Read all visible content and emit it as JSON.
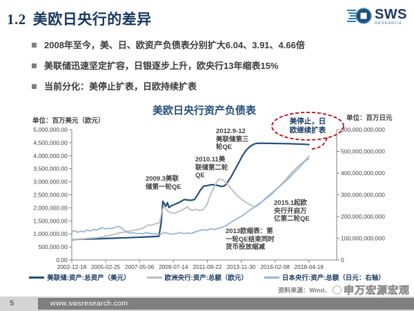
{
  "header": {
    "section_no": "1.2",
    "title": "美欧日央行的差异"
  },
  "logo": {
    "name": "SWS",
    "sub": "RESEARCH"
  },
  "bullets": [
    "2008年至今，美、日、欧资产负债表分别扩大6.04、3.91、4.66倍",
    "美联储迅速坚定扩容，日银逐步上升，欧央行13年缩表15%",
    "当前分化：美停止扩表，日欧持续扩表"
  ],
  "chart_data": {
    "type": "line",
    "title": "美欧日央行资产负债表",
    "left_axis": {
      "unit": "单位：百万美元（欧元）",
      "min": 0,
      "max": 5000000,
      "tick_labels": [
        "5,000,000.00",
        "4,500,000.00",
        "4,000,000.00",
        "3,500,000.00",
        "3,000,000.00",
        "2,500,000.00",
        "2,000,000.00",
        "1,500,000.00",
        "1,000,000.00",
        "500,000.00",
        "0.00"
      ]
    },
    "right_axis": {
      "unit": "单位：百万日元",
      "min": 0,
      "max": 600000000000,
      "tick_labels": [
        "600,000,000,000",
        "500,000,000,000",
        "400,000,000,000",
        "300,000,000,000",
        "200,000,000,000",
        "100,000,000,000",
        "0"
      ]
    },
    "x_axis": {
      "tick_labels": [
        "2002-12-18",
        "2005-02-25",
        "2007-05-06",
        "2009-07-14",
        "2011-09-22",
        "2013-11-30",
        "2016-02-08",
        "2018-04-18"
      ],
      "start_year": 2002.96,
      "end_year": 2018.3
    },
    "series": [
      {
        "name": "美联储:资产:总资产（美元）",
        "color": "#1F4E79",
        "axis": "left",
        "width": 2.2,
        "points": [
          [
            2002.96,
            780000
          ],
          [
            2003.5,
            795000
          ],
          [
            2004,
            805000
          ],
          [
            2004.5,
            810000
          ],
          [
            2005,
            820000
          ],
          [
            2005.5,
            832000
          ],
          [
            2006,
            845000
          ],
          [
            2006.5,
            852000
          ],
          [
            2007,
            865000
          ],
          [
            2007.5,
            875000
          ],
          [
            2008,
            890000
          ],
          [
            2008.6,
            910000
          ],
          [
            2008.75,
            1450000
          ],
          [
            2008.85,
            2250000
          ],
          [
            2008.95,
            2150000
          ],
          [
            2009.05,
            2060000
          ],
          [
            2009.15,
            2200000
          ],
          [
            2009.25,
            2010000
          ],
          [
            2009.4,
            2080000
          ],
          [
            2009.6,
            2130000
          ],
          [
            2009.8,
            2180000
          ],
          [
            2010,
            2240000
          ],
          [
            2010.25,
            2320000
          ],
          [
            2010.5,
            2300000
          ],
          [
            2010.7,
            2290000
          ],
          [
            2010.9,
            2320000
          ],
          [
            2011.1,
            2500000
          ],
          [
            2011.3,
            2700000
          ],
          [
            2011.5,
            2830000
          ],
          [
            2011.75,
            2860000
          ],
          [
            2012,
            2890000
          ],
          [
            2012.25,
            2880000
          ],
          [
            2012.45,
            2850000
          ],
          [
            2012.65,
            2820000
          ],
          [
            2012.85,
            2850000
          ],
          [
            2013,
            2950000
          ],
          [
            2013.25,
            3180000
          ],
          [
            2013.5,
            3450000
          ],
          [
            2013.75,
            3720000
          ],
          [
            2014,
            4000000
          ],
          [
            2014.25,
            4220000
          ],
          [
            2014.5,
            4360000
          ],
          [
            2014.75,
            4450000
          ],
          [
            2015,
            4480000
          ],
          [
            2015.5,
            4475000
          ],
          [
            2016,
            4470000
          ],
          [
            2016.5,
            4465000
          ],
          [
            2017,
            4460000
          ],
          [
            2017.5,
            4450000
          ],
          [
            2018,
            4440000
          ],
          [
            2018.3,
            4425000
          ]
        ]
      },
      {
        "name": "欧洲央行:资产:总额（欧元）",
        "color": "#BFBFBF",
        "axis": "left",
        "width": 2,
        "points": [
          [
            2002.96,
            790000
          ],
          [
            2003.3,
            795000
          ],
          [
            2003.6,
            805000
          ],
          [
            2004,
            830000
          ],
          [
            2004.4,
            845000
          ],
          [
            2004.8,
            870000
          ],
          [
            2005.2,
            915000
          ],
          [
            2005.6,
            965000
          ],
          [
            2006,
            1040000
          ],
          [
            2006.4,
            1075000
          ],
          [
            2006.8,
            1120000
          ],
          [
            2007.2,
            1165000
          ],
          [
            2007.6,
            1230000
          ],
          [
            2007.9,
            1345000
          ],
          [
            2008.1,
            1330000
          ],
          [
            2008.4,
            1395000
          ],
          [
            2008.65,
            1430000
          ],
          [
            2008.8,
            1890000
          ],
          [
            2008.92,
            2060000
          ],
          [
            2009.05,
            1960000
          ],
          [
            2009.2,
            1860000
          ],
          [
            2009.4,
            1810000
          ],
          [
            2009.6,
            1790000
          ],
          [
            2009.8,
            1840000
          ],
          [
            2010,
            1890000
          ],
          [
            2010.2,
            1945000
          ],
          [
            2010.45,
            2040000
          ],
          [
            2010.6,
            1930000
          ],
          [
            2010.8,
            1905000
          ],
          [
            2011,
            1945000
          ],
          [
            2011.2,
            1895000
          ],
          [
            2011.45,
            1925000
          ],
          [
            2011.7,
            2120000
          ],
          [
            2011.9,
            2450000
          ],
          [
            2012.1,
            2710000
          ],
          [
            2012.3,
            2960000
          ],
          [
            2012.5,
            3100000
          ],
          [
            2012.7,
            3075000
          ],
          [
            2012.9,
            3000000
          ],
          [
            2013.1,
            2855000
          ],
          [
            2013.35,
            2680000
          ],
          [
            2013.6,
            2500000
          ],
          [
            2013.85,
            2370000
          ],
          [
            2014.1,
            2260000
          ],
          [
            2014.4,
            2150000
          ],
          [
            2014.65,
            2070000
          ],
          [
            2014.85,
            2040000
          ],
          [
            2015.05,
            2110000
          ],
          [
            2015.3,
            2260000
          ],
          [
            2015.6,
            2420000
          ],
          [
            2015.9,
            2580000
          ],
          [
            2016.2,
            2720000
          ],
          [
            2016.5,
            2890000
          ],
          [
            2016.8,
            3080000
          ],
          [
            2017.1,
            3290000
          ],
          [
            2017.4,
            3480000
          ],
          [
            2017.7,
            3640000
          ],
          [
            2018,
            3790000
          ],
          [
            2018.3,
            3870000
          ]
        ]
      },
      {
        "name": "日本央行:资产:总额（日元：右轴）",
        "color": "#95B3D7",
        "axis": "right",
        "width": 1.8,
        "points": [
          [
            2002.96,
            128000000000
          ],
          [
            2003.15,
            136000000000
          ],
          [
            2003.35,
            127000000000
          ],
          [
            2003.55,
            133000000000
          ],
          [
            2003.75,
            129000000000
          ],
          [
            2003.95,
            139000000000
          ],
          [
            2004.15,
            133000000000
          ],
          [
            2004.35,
            141000000000
          ],
          [
            2004.55,
            137000000000
          ],
          [
            2004.75,
            144000000000
          ],
          [
            2004.95,
            148000000000
          ],
          [
            2005.15,
            143000000000
          ],
          [
            2005.35,
            147000000000
          ],
          [
            2005.55,
            144000000000
          ],
          [
            2005.75,
            150000000000
          ],
          [
            2005.95,
            155000000000
          ],
          [
            2006.15,
            149000000000
          ],
          [
            2006.35,
            137000000000
          ],
          [
            2006.55,
            127000000000
          ],
          [
            2006.75,
            123000000000
          ],
          [
            2006.95,
            126000000000
          ],
          [
            2007.15,
            121000000000
          ],
          [
            2007.35,
            123000000000
          ],
          [
            2007.55,
            120000000000
          ],
          [
            2007.75,
            126000000000
          ],
          [
            2007.95,
            124000000000
          ],
          [
            2008.2,
            119000000000
          ],
          [
            2008.45,
            121000000000
          ],
          [
            2008.7,
            118000000000
          ],
          [
            2008.95,
            126000000000
          ],
          [
            2009.2,
            122000000000
          ],
          [
            2009.45,
            119000000000
          ],
          [
            2009.7,
            121000000000
          ],
          [
            2009.95,
            126000000000
          ],
          [
            2010.2,
            121000000000
          ],
          [
            2010.45,
            124000000000
          ],
          [
            2010.7,
            122000000000
          ],
          [
            2010.95,
            129000000000
          ],
          [
            2011.2,
            135000000000
          ],
          [
            2011.45,
            139000000000
          ],
          [
            2011.7,
            137000000000
          ],
          [
            2011.95,
            144000000000
          ],
          [
            2012.2,
            140000000000
          ],
          [
            2012.45,
            146000000000
          ],
          [
            2012.7,
            151000000000
          ],
          [
            2012.95,
            159000000000
          ],
          [
            2013.2,
            170000000000
          ],
          [
            2013.45,
            182000000000
          ],
          [
            2013.7,
            192000000000
          ],
          [
            2013.95,
            202000000000
          ],
          [
            2014.2,
            215000000000
          ],
          [
            2014.45,
            228000000000
          ],
          [
            2014.7,
            240000000000
          ],
          [
            2014.95,
            252000000000
          ],
          [
            2015.2,
            265000000000
          ],
          [
            2015.45,
            278000000000
          ],
          [
            2015.7,
            292000000000
          ],
          [
            2015.95,
            307000000000
          ],
          [
            2016.2,
            325000000000
          ],
          [
            2016.45,
            342000000000
          ],
          [
            2016.7,
            358000000000
          ],
          [
            2016.95,
            373000000000
          ],
          [
            2017.2,
            392000000000
          ],
          [
            2017.45,
            410000000000
          ],
          [
            2017.7,
            428000000000
          ],
          [
            2017.95,
            448000000000
          ],
          [
            2018.3,
            477000000000
          ]
        ]
      }
    ],
    "annotations": [
      {
        "text": "2009.3美联\n储第一轮QE"
      },
      {
        "text": "2010.11美\n联储第二轮\nQE"
      },
      {
        "text": "2012.9-12\n美联储第三\n轮QE"
      },
      {
        "text": "2015.1起欧\n央行开启万\n亿第二轮QE"
      },
      {
        "text": "2013欧缩表：第\n一轮QE结束同时\n货币投放缩减"
      }
    ],
    "callout": {
      "text": "美停止，日\n欧继续扩表",
      "color": "#C00000"
    },
    "legend_position": "bottom",
    "grid": false
  },
  "source": {
    "label": "资料来源：Wind、",
    "watermark": "申万宏源宏观"
  },
  "footer": {
    "page": "5",
    "url": "www.swsresearch.com"
  }
}
